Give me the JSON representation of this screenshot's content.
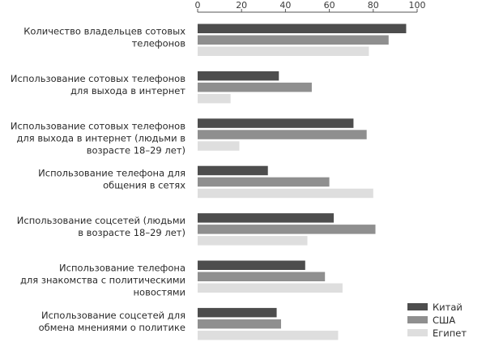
{
  "chart_data": {
    "type": "bar",
    "orientation": "horizontal",
    "title": "",
    "xlabel": "",
    "ylabel": "",
    "xlim": [
      0,
      100
    ],
    "xticks": [
      0,
      20,
      40,
      60,
      80,
      100
    ],
    "tick_position": "top",
    "grid": false,
    "legend_position": "bottom-right",
    "categories": [
      [
        "Количество владельцев сотовых",
        "телефонов"
      ],
      [
        "Использование сотовых телефонов",
        "для выхода в интернет"
      ],
      [
        "Использование сотовых телефонов",
        "для выхода в интернет (людьми в",
        "возрасте 18–29 лет)"
      ],
      [
        "Использование телефона для",
        "общения в сетях"
      ],
      [
        "Использование соцсетей (людьми",
        "в возрасте 18–29 лет)"
      ],
      [
        "Использование телефона",
        "для знакомства с политическими",
        "новостями"
      ],
      [
        "Использование соцсетей для",
        "обмена мнениями о политике"
      ]
    ],
    "series": [
      {
        "name": "Китай",
        "color": "#4d4d4d",
        "values": [
          95,
          37,
          71,
          32,
          62,
          49,
          36
        ]
      },
      {
        "name": "США",
        "color": "#8f8f8f",
        "values": [
          87,
          52,
          77,
          60,
          81,
          58,
          38
        ]
      },
      {
        "name": "Египет",
        "color": "#dedede",
        "values": [
          78,
          15,
          19,
          80,
          50,
          66,
          64
        ]
      }
    ]
  }
}
